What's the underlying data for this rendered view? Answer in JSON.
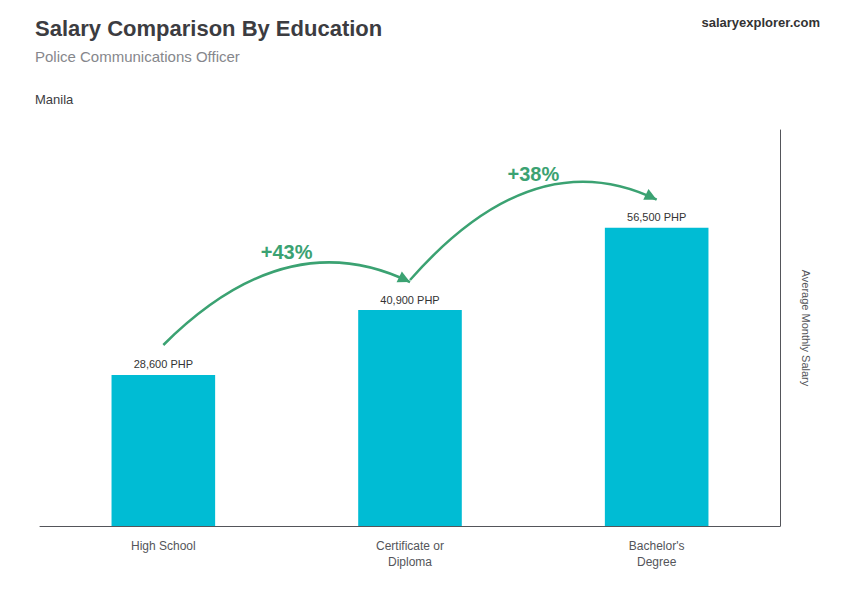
{
  "chart_data": {
    "type": "bar",
    "title": "Salary Comparison By Education",
    "subtitle": "Police Communications Officer",
    "location": "Manila",
    "ylabel": "Average Monthly Salary",
    "categories": [
      "High School",
      "Certificate or\nDiploma",
      "Bachelor's\nDegree"
    ],
    "values": [
      28600,
      40900,
      56500
    ],
    "value_labels": [
      "28,600 PHP",
      "40,900 PHP",
      "56,500 PHP"
    ],
    "data_labels": true,
    "annotations": [
      "+43%",
      "+38%"
    ],
    "watermark": "salaryexplorer.com",
    "color": "#00bcd4",
    "ylim": [
      0,
      75000
    ],
    "grid": false,
    "tick_labels": "x"
  }
}
